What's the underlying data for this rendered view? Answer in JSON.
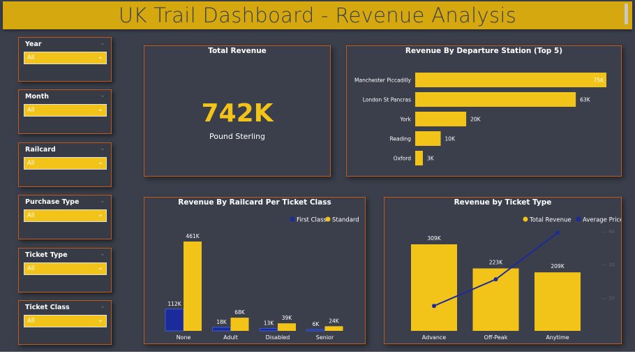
{
  "dashboard": {
    "title": "UK Trail Dashboard - Revenue Analysis",
    "colors": {
      "background": "#3a3f4b",
      "accent": "#f2c318",
      "title_bar": "#d4a80e",
      "border": "#c15a1c",
      "first_class": "#1b2b9a"
    }
  },
  "slicers": [
    {
      "label": "Year",
      "value": "All"
    },
    {
      "label": "Month",
      "value": "All"
    },
    {
      "label": "Railcard",
      "value": "All"
    },
    {
      "label": "Purchase Type",
      "value": "All"
    },
    {
      "label": "Ticket Type",
      "value": "All"
    },
    {
      "label": "Ticket Class",
      "value": "All"
    }
  ],
  "kpi": {
    "title": "Total Revenue",
    "value": "742K",
    "unit": "Pound Sterling"
  },
  "chart_data": [
    {
      "type": "bar",
      "orientation": "horizontal",
      "title": "Revenue By Departure Station (Top 5)",
      "categories": [
        "Manchester Piccadilly",
        "London St Pancras",
        "York",
        "Reading",
        "Oxford"
      ],
      "values": [
        75,
        63,
        20,
        10,
        3
      ],
      "labels": [
        "75K",
        "63K",
        "20K",
        "10K",
        "3K"
      ],
      "color": "#f2c318"
    },
    {
      "type": "bar",
      "title": "Revenue By Railcard Per Ticket Class",
      "categories": [
        "None",
        "Adult",
        "Disabled",
        "Senior"
      ],
      "series": [
        {
          "name": "First Class",
          "values": [
            112,
            18,
            13,
            6
          ],
          "labels": [
            "112K",
            "18K",
            "13K",
            "6K"
          ],
          "color": "#1b2b9a"
        },
        {
          "name": "Standard",
          "values": [
            461,
            68,
            39,
            24
          ],
          "labels": [
            "461K",
            "68K",
            "39K",
            "24K"
          ],
          "color": "#f2c318"
        }
      ],
      "legend": "top-right"
    },
    {
      "type": "bar",
      "title": "Revenue by Ticket Type",
      "categories": [
        "Advance",
        "Off-Peak",
        "Anytime"
      ],
      "series": [
        {
          "name": "Total Revenue",
          "type": "bar",
          "values": [
            309,
            223,
            209
          ],
          "labels": [
            "309K",
            "223K",
            "209K"
          ],
          "color": "#f2c318"
        },
        {
          "name": "Average Price",
          "type": "line",
          "values": [
            17.5,
            25.5,
            39.5
          ],
          "color": "#1b2b9a"
        }
      ],
      "secondary_axis": {
        "ticks": [
          20,
          30,
          40
        ]
      },
      "legend": "top-right"
    }
  ]
}
